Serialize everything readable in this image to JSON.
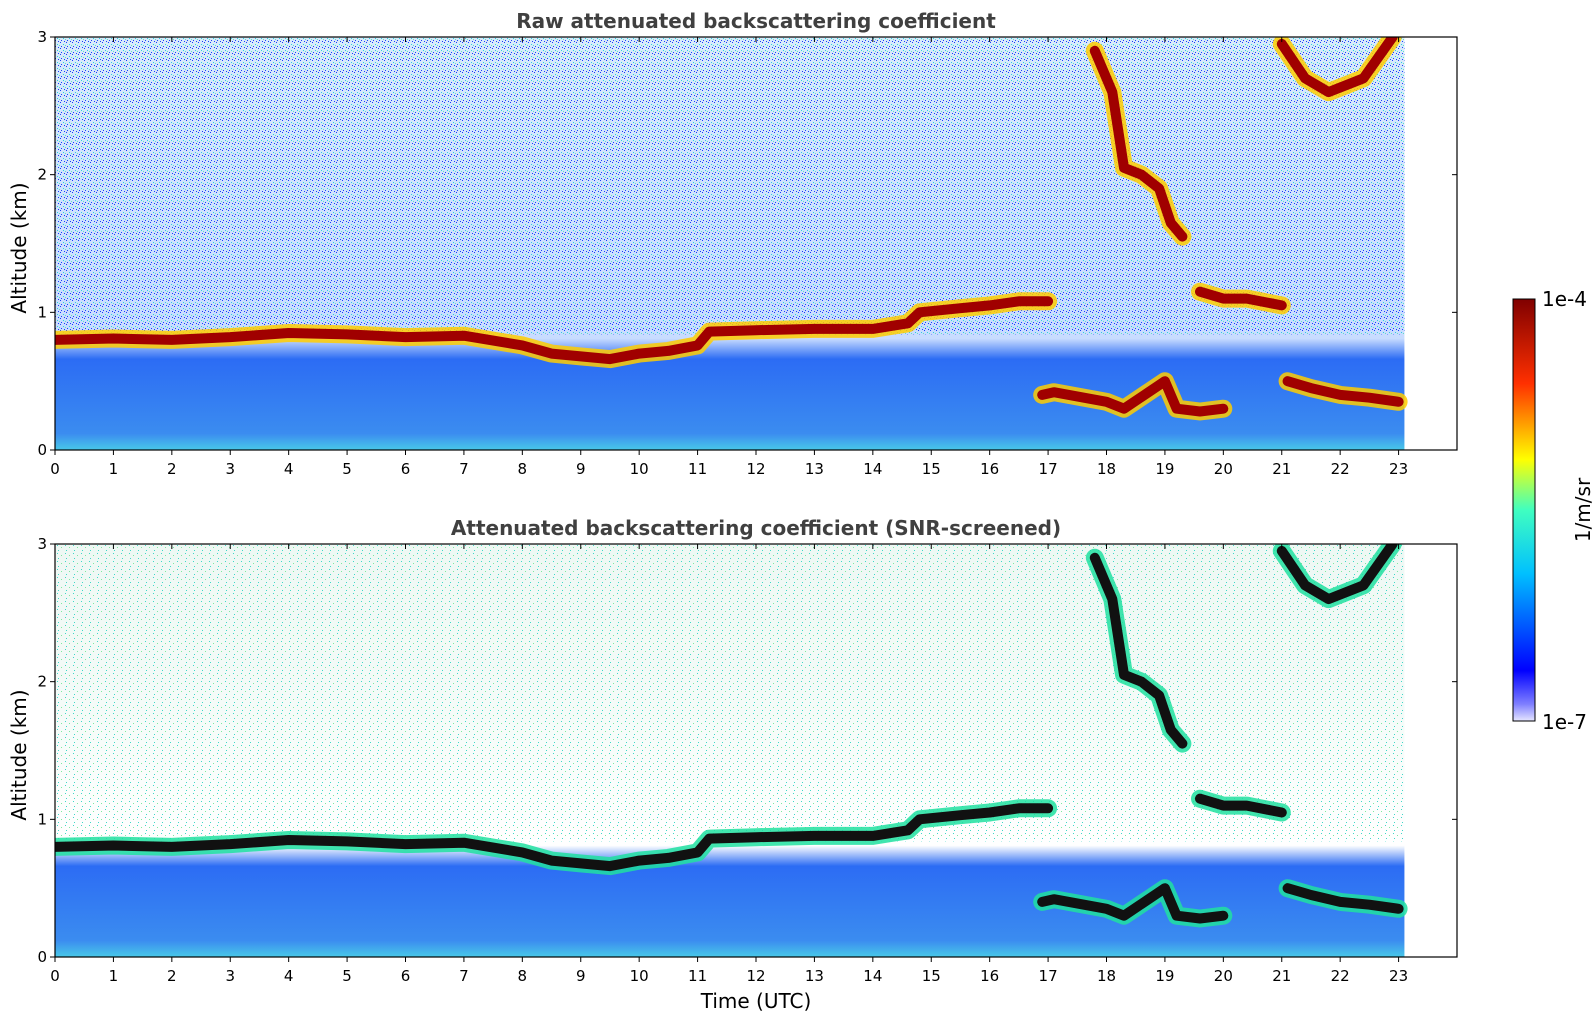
{
  "chart_data": [
    {
      "type": "heatmap",
      "title": "Raw attenuated backscattering coefficient",
      "xlabel": "",
      "ylabel": "Altitude (km)",
      "xlim": [
        0,
        24
      ],
      "ylim": [
        0,
        3
      ],
      "xticks": [
        "0",
        "1",
        "2",
        "3",
        "4",
        "5",
        "6",
        "7",
        "8",
        "9",
        "10",
        "11",
        "12",
        "13",
        "14",
        "15",
        "16",
        "17",
        "18",
        "19",
        "20",
        "21",
        "22",
        "23"
      ],
      "yticks": [
        "0",
        "1",
        "2",
        "3"
      ],
      "data_end_time": 23.1,
      "layers": [
        {
          "name": "boundary-layer top",
          "points": [
            [
              0,
              0.8
            ],
            [
              1,
              0.81
            ],
            [
              2,
              0.8
            ],
            [
              3,
              0.82
            ],
            [
              4,
              0.85
            ],
            [
              5,
              0.84
            ],
            [
              6,
              0.82
            ],
            [
              7,
              0.83
            ],
            [
              8,
              0.76
            ],
            [
              8.5,
              0.7
            ],
            [
              9,
              0.68
            ],
            [
              9.5,
              0.66
            ],
            [
              10,
              0.7
            ],
            [
              10.5,
              0.72
            ],
            [
              11,
              0.76
            ],
            [
              11.2,
              0.86
            ],
            [
              12,
              0.87
            ],
            [
              13,
              0.88
            ],
            [
              14,
              0.88
            ],
            [
              14.6,
              0.92
            ],
            [
              14.8,
              1.0
            ],
            [
              15.5,
              1.03
            ],
            [
              16,
              1.05
            ],
            [
              16.5,
              1.08
            ],
            [
              17,
              1.08
            ]
          ]
        },
        {
          "name": "low cloud 17-20h",
          "points": [
            [
              16.9,
              0.4
            ],
            [
              17.1,
              0.42
            ],
            [
              18.0,
              0.35
            ],
            [
              18.3,
              0.3
            ],
            [
              19.0,
              0.5
            ],
            [
              19.2,
              0.3
            ],
            [
              19.6,
              0.28
            ],
            [
              20.0,
              0.3
            ]
          ]
        },
        {
          "name": "low cloud 21-23h",
          "points": [
            [
              21.1,
              0.5
            ],
            [
              21.5,
              0.45
            ],
            [
              22.0,
              0.4
            ],
            [
              22.5,
              0.38
            ],
            [
              23.0,
              0.35
            ]
          ]
        },
        {
          "name": "elevated cloud 18-20h",
          "points": [
            [
              17.8,
              2.9
            ],
            [
              18.1,
              2.6
            ],
            [
              18.3,
              2.05
            ],
            [
              18.6,
              2.0
            ],
            [
              18.9,
              1.9
            ],
            [
              19.1,
              1.65
            ],
            [
              19.3,
              1.55
            ]
          ]
        },
        {
          "name": "elevated cloud 20-21h",
          "points": [
            [
              19.6,
              1.15
            ],
            [
              20.0,
              1.1
            ],
            [
              20.4,
              1.1
            ],
            [
              21.0,
              1.05
            ]
          ]
        },
        {
          "name": "upper cloud 21-23h",
          "points": [
            [
              21.0,
              2.95
            ],
            [
              21.4,
              2.7
            ],
            [
              21.8,
              2.6
            ],
            [
              22.4,
              2.7
            ],
            [
              22.9,
              3.0
            ]
          ]
        }
      ]
    },
    {
      "type": "heatmap",
      "title": "Attenuated backscattering coefficient (SNR-screened)",
      "xlabel": "Time (UTC)",
      "ylabel": "Altitude (km)",
      "xlim": [
        0,
        24
      ],
      "ylim": [
        0,
        3
      ],
      "xticks": [
        "0",
        "1",
        "2",
        "3",
        "4",
        "5",
        "6",
        "7",
        "8",
        "9",
        "10",
        "11",
        "12",
        "13",
        "14",
        "15",
        "16",
        "17",
        "18",
        "19",
        "20",
        "21",
        "22",
        "23"
      ],
      "yticks": [
        "0",
        "1",
        "2",
        "3"
      ],
      "data_end_time": 23.1
    }
  ],
  "colorbar": {
    "label": "1/m/sr",
    "max_label": "1e-4",
    "min_label": "1e-7",
    "colormap": "jet",
    "colors": [
      "#e6e6ff",
      "#0000ff",
      "#00ffff",
      "#ffff00",
      "#ff0000",
      "#800000"
    ]
  }
}
